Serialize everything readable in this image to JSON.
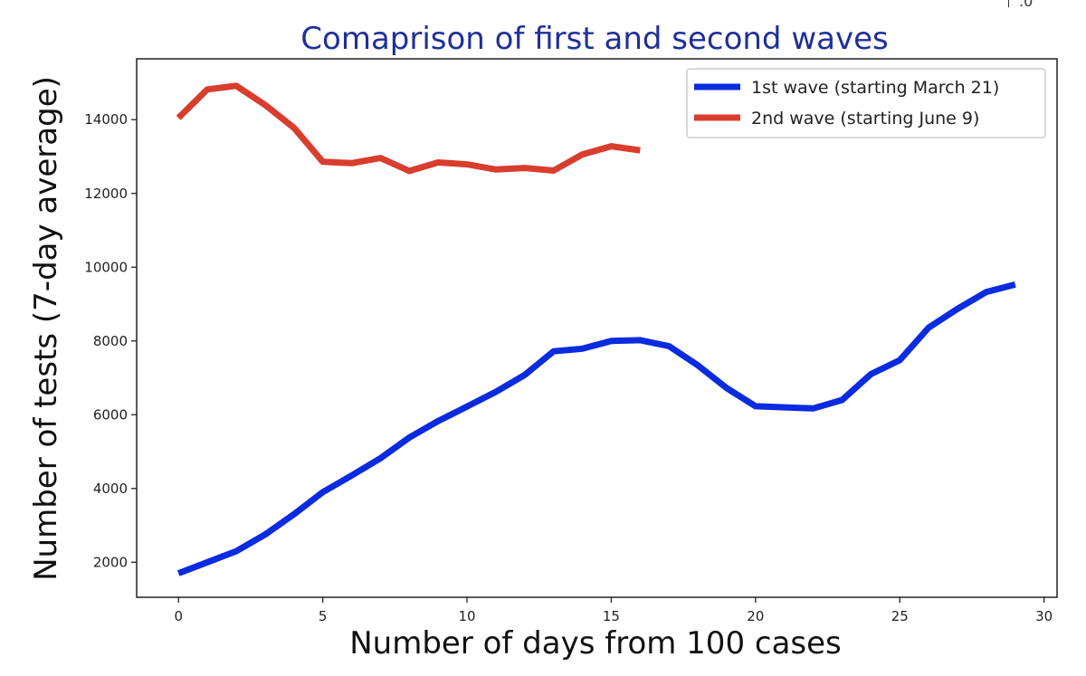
{
  "chart_data": {
    "type": "line",
    "title": "Comaprison of first and second waves",
    "xlabel": "Number of days from 100 cases",
    "ylabel": "Number of tests (7-day average)",
    "xlim": [
      -1.45,
      30.45
    ],
    "ylim": [
      1050,
      15650
    ],
    "xticks": [
      0,
      5,
      10,
      15,
      20,
      25,
      30
    ],
    "yticks": [
      2000,
      4000,
      6000,
      8000,
      10000,
      12000,
      14000
    ],
    "grid": false,
    "legend_position": "top-right",
    "title_color": "#1f2f9b",
    "series": [
      {
        "name": "1st wave (starting March 21)",
        "color": "#0a2be0",
        "x": [
          0,
          1,
          2,
          3,
          4,
          5,
          6,
          7,
          8,
          9,
          10,
          11,
          12,
          13,
          14,
          15,
          16,
          17,
          18,
          19,
          20,
          21,
          22,
          23,
          24,
          25,
          26,
          27,
          28,
          29
        ],
        "y": [
          1700,
          2000,
          2300,
          2750,
          3300,
          3900,
          4350,
          4820,
          5380,
          5830,
          6220,
          6620,
          7080,
          7720,
          7790,
          8000,
          8020,
          7860,
          7340,
          6720,
          6230,
          6200,
          6170,
          6400,
          7100,
          7480,
          8360,
          8870,
          9330,
          9530
        ]
      },
      {
        "name": "2nd wave (starting June 9)",
        "color": "#d83d2e",
        "x": [
          0,
          1,
          2,
          3,
          4,
          5,
          6,
          7,
          8,
          9,
          10,
          11,
          12,
          13,
          14,
          15,
          16
        ],
        "y": [
          14050,
          14820,
          14920,
          14400,
          13780,
          12860,
          12820,
          12960,
          12610,
          12840,
          12790,
          12650,
          12690,
          12620,
          13060,
          13280,
          13170
        ]
      }
    ]
  },
  "corner_fragment": ".0"
}
